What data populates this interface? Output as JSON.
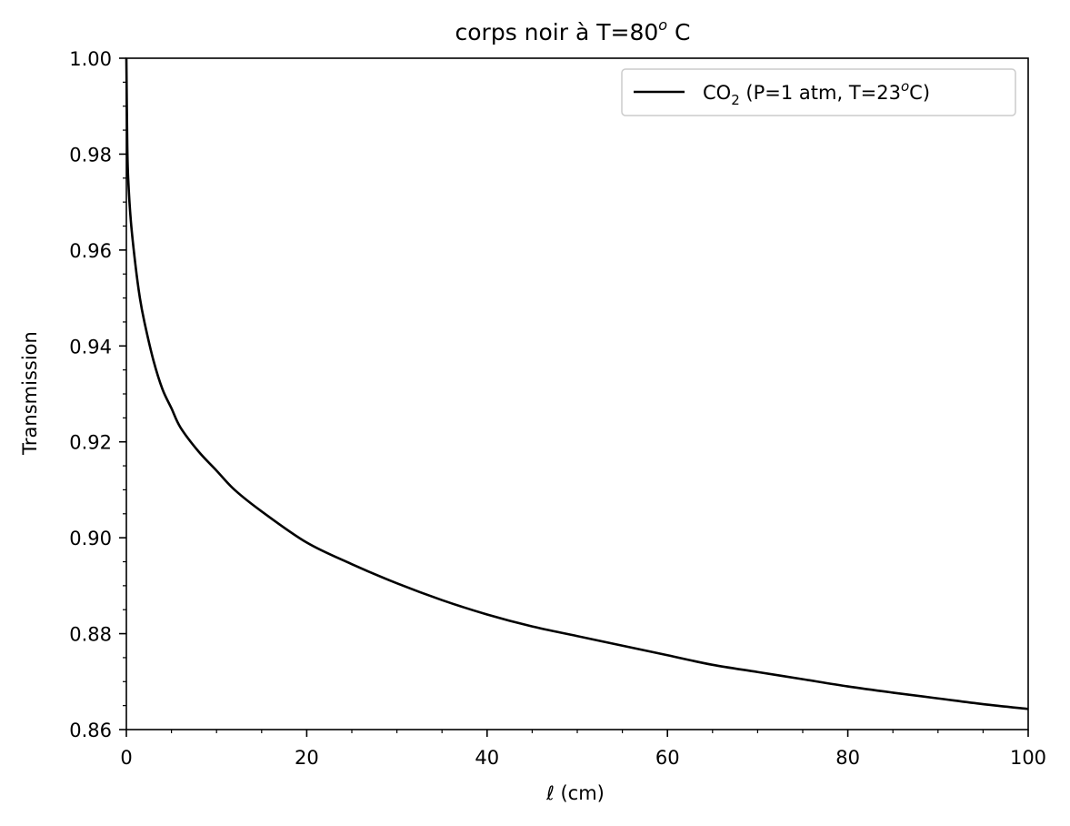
{
  "chart_data": {
    "type": "line",
    "title": {
      "base": "corps noir à T=80",
      "sup": "o",
      "tail": " C"
    },
    "xlabel": {
      "symbol": "ℓ",
      "rest": " (cm)"
    },
    "ylabel": "Transmission",
    "xlim": [
      0,
      100
    ],
    "ylim": [
      0.86,
      1.0
    ],
    "x_ticks": [
      0,
      20,
      40,
      60,
      80,
      100
    ],
    "x_tick_labels": [
      "0",
      "20",
      "40",
      "60",
      "80",
      "100"
    ],
    "y_ticks": [
      0.86,
      0.88,
      0.9,
      0.92,
      0.94,
      0.96,
      0.98,
      1.0
    ],
    "y_tick_labels": [
      "0.86",
      "0.88",
      "0.90",
      "0.92",
      "0.94",
      "0.96",
      "0.98",
      "1.00"
    ],
    "x_minor_step": 5,
    "y_minor_step": 0.005,
    "grid": false,
    "legend_position": "top-right",
    "series": [
      {
        "legend": {
          "p1": "CO",
          "sub": "2",
          "p2": " (P=1 atm, T=23",
          "sup": "o",
          "p3": "C)"
        },
        "color": "#000000",
        "x": [
          0,
          0.1,
          0.2,
          0.5,
          1,
          1.5,
          2,
          3,
          4,
          5,
          6,
          8,
          10,
          12,
          15,
          20,
          25,
          30,
          35,
          40,
          45,
          50,
          55,
          60,
          65,
          70,
          75,
          80,
          85,
          90,
          95,
          100
        ],
        "y": [
          1.0,
          0.982,
          0.975,
          0.966,
          0.957,
          0.95,
          0.945,
          0.937,
          0.931,
          0.927,
          0.923,
          0.918,
          0.914,
          0.91,
          0.9055,
          0.899,
          0.8945,
          0.8905,
          0.887,
          0.884,
          0.8815,
          0.8795,
          0.8775,
          0.8755,
          0.8735,
          0.872,
          0.8705,
          0.869,
          0.8677,
          0.8665,
          0.8653,
          0.8643
        ]
      }
    ]
  }
}
